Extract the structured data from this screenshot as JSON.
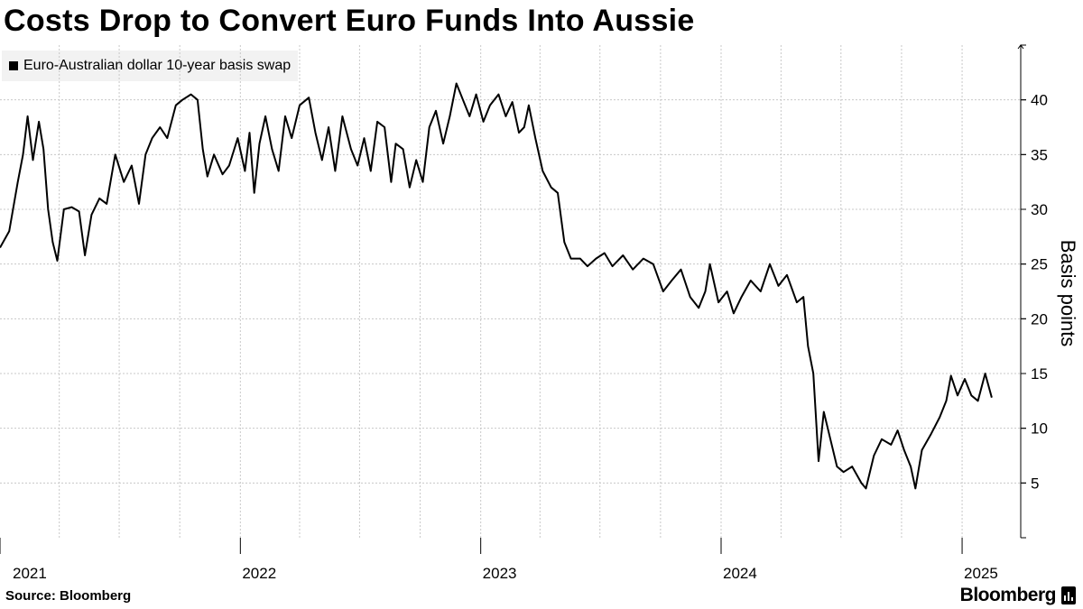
{
  "chart_data": {
    "type": "line",
    "title": "Costs Drop to Convert Euro Funds Into Aussie",
    "ylabel": "Basis points",
    "xlabel": "",
    "ylim": [
      0,
      45
    ],
    "y_ticks": [
      5,
      10,
      15,
      20,
      25,
      30,
      35,
      40
    ],
    "x_ticks": [
      "2021",
      "2022",
      "2023",
      "2024",
      "2025"
    ],
    "x_range": [
      "2021-01-01",
      "2025-03-31"
    ],
    "y_axis_side": "right",
    "grid": true,
    "legend_position": "top-left",
    "series": [
      {
        "name": "Euro-Australian dollar 10-year basis swap",
        "color": "#000000",
        "points": [
          [
            "2021-01-01",
            26.5
          ],
          [
            "2021-01-15",
            28.0
          ],
          [
            "2021-01-28",
            32.5
          ],
          [
            "2021-02-05",
            35.0
          ],
          [
            "2021-02-12",
            38.5
          ],
          [
            "2021-02-20",
            34.5
          ],
          [
            "2021-03-01",
            38.0
          ],
          [
            "2021-03-08",
            35.5
          ],
          [
            "2021-03-15",
            30.0
          ],
          [
            "2021-03-22",
            27.0
          ],
          [
            "2021-03-29",
            25.3
          ],
          [
            "2021-04-08",
            30.0
          ],
          [
            "2021-04-20",
            30.2
          ],
          [
            "2021-05-01",
            29.8
          ],
          [
            "2021-05-10",
            25.8
          ],
          [
            "2021-05-20",
            29.5
          ],
          [
            "2021-06-01",
            31.0
          ],
          [
            "2021-06-12",
            30.5
          ],
          [
            "2021-06-25",
            35.0
          ],
          [
            "2021-07-08",
            32.5
          ],
          [
            "2021-07-20",
            34.0
          ],
          [
            "2021-07-31",
            30.5
          ],
          [
            "2021-08-10",
            35.0
          ],
          [
            "2021-08-20",
            36.5
          ],
          [
            "2021-09-01",
            37.5
          ],
          [
            "2021-09-12",
            36.5
          ],
          [
            "2021-09-25",
            39.5
          ],
          [
            "2021-10-05",
            40.0
          ],
          [
            "2021-10-18",
            40.5
          ],
          [
            "2021-10-28",
            40.0
          ],
          [
            "2021-11-05",
            35.5
          ],
          [
            "2021-11-12",
            33.0
          ],
          [
            "2021-11-22",
            35.0
          ],
          [
            "2021-12-05",
            33.2
          ],
          [
            "2021-12-15",
            34.0
          ],
          [
            "2021-12-28",
            36.5
          ],
          [
            "2022-01-08",
            33.5
          ],
          [
            "2022-01-15",
            37.0
          ],
          [
            "2022-01-22",
            31.5
          ],
          [
            "2022-01-30",
            36.0
          ],
          [
            "2022-02-08",
            38.5
          ],
          [
            "2022-02-18",
            35.5
          ],
          [
            "2022-02-28",
            33.5
          ],
          [
            "2022-03-10",
            38.5
          ],
          [
            "2022-03-20",
            36.5
          ],
          [
            "2022-04-01",
            39.5
          ],
          [
            "2022-04-15",
            40.2
          ],
          [
            "2022-04-25",
            37.0
          ],
          [
            "2022-05-05",
            34.5
          ],
          [
            "2022-05-15",
            37.5
          ],
          [
            "2022-05-25",
            33.5
          ],
          [
            "2022-06-05",
            38.5
          ],
          [
            "2022-06-18",
            35.5
          ],
          [
            "2022-06-28",
            34.0
          ],
          [
            "2022-07-08",
            36.5
          ],
          [
            "2022-07-18",
            33.5
          ],
          [
            "2022-07-28",
            38.0
          ],
          [
            "2022-08-08",
            37.5
          ],
          [
            "2022-08-18",
            32.5
          ],
          [
            "2022-08-25",
            36.0
          ],
          [
            "2022-09-05",
            35.5
          ],
          [
            "2022-09-15",
            32.0
          ],
          [
            "2022-09-25",
            34.5
          ],
          [
            "2022-10-05",
            32.5
          ],
          [
            "2022-10-15",
            37.5
          ],
          [
            "2022-10-25",
            39.0
          ],
          [
            "2022-11-05",
            36.0
          ],
          [
            "2022-11-15",
            38.5
          ],
          [
            "2022-11-25",
            41.5
          ],
          [
            "2022-12-05",
            40.0
          ],
          [
            "2022-12-15",
            38.5
          ],
          [
            "2022-12-25",
            40.5
          ],
          [
            "2023-01-05",
            38.0
          ],
          [
            "2023-01-15",
            39.5
          ],
          [
            "2023-01-28",
            40.5
          ],
          [
            "2023-02-08",
            38.5
          ],
          [
            "2023-02-18",
            39.8
          ],
          [
            "2023-02-28",
            37.0
          ],
          [
            "2023-03-08",
            37.5
          ],
          [
            "2023-03-15",
            39.5
          ],
          [
            "2023-03-25",
            36.5
          ],
          [
            "2023-04-05",
            33.5
          ],
          [
            "2023-04-18",
            32.0
          ],
          [
            "2023-04-28",
            31.5
          ],
          [
            "2023-05-08",
            27.0
          ],
          [
            "2023-05-18",
            25.5
          ],
          [
            "2023-06-01",
            25.5
          ],
          [
            "2023-06-12",
            24.8
          ],
          [
            "2023-06-25",
            25.5
          ],
          [
            "2023-07-08",
            26.0
          ],
          [
            "2023-07-20",
            24.8
          ],
          [
            "2023-08-05",
            25.8
          ],
          [
            "2023-08-20",
            24.5
          ],
          [
            "2023-09-05",
            25.5
          ],
          [
            "2023-09-20",
            25.0
          ],
          [
            "2023-10-05",
            22.5
          ],
          [
            "2023-10-18",
            23.5
          ],
          [
            "2023-11-01",
            24.5
          ],
          [
            "2023-11-15",
            22.0
          ],
          [
            "2023-11-28",
            21.0
          ],
          [
            "2023-12-08",
            22.5
          ],
          [
            "2023-12-15",
            25.0
          ],
          [
            "2023-12-28",
            21.5
          ],
          [
            "2024-01-10",
            22.5
          ],
          [
            "2024-01-20",
            20.5
          ],
          [
            "2024-02-01",
            22.0
          ],
          [
            "2024-02-15",
            23.5
          ],
          [
            "2024-03-01",
            22.5
          ],
          [
            "2024-03-15",
            25.0
          ],
          [
            "2024-03-28",
            23.0
          ],
          [
            "2024-04-10",
            24.0
          ],
          [
            "2024-04-25",
            21.5
          ],
          [
            "2024-05-05",
            22.0
          ],
          [
            "2024-05-12",
            17.5
          ],
          [
            "2024-05-20",
            15.0
          ],
          [
            "2024-05-28",
            7.0
          ],
          [
            "2024-06-05",
            11.5
          ],
          [
            "2024-06-15",
            9.0
          ],
          [
            "2024-06-25",
            6.5
          ],
          [
            "2024-07-05",
            6.0
          ],
          [
            "2024-07-18",
            6.5
          ],
          [
            "2024-08-01",
            5.0
          ],
          [
            "2024-08-08",
            4.5
          ],
          [
            "2024-08-20",
            7.5
          ],
          [
            "2024-09-01",
            9.0
          ],
          [
            "2024-09-15",
            8.5
          ],
          [
            "2024-09-25",
            9.8
          ],
          [
            "2024-10-05",
            8.0
          ],
          [
            "2024-10-15",
            6.5
          ],
          [
            "2024-10-22",
            4.5
          ],
          [
            "2024-11-01",
            8.0
          ],
          [
            "2024-11-15",
            9.5
          ],
          [
            "2024-11-28",
            11.0
          ],
          [
            "2024-12-08",
            12.5
          ],
          [
            "2024-12-15",
            14.8
          ],
          [
            "2024-12-25",
            13.0
          ],
          [
            "2025-01-05",
            14.5
          ],
          [
            "2025-01-15",
            13.0
          ],
          [
            "2025-01-25",
            12.5
          ],
          [
            "2025-02-05",
            15.0
          ],
          [
            "2025-02-15",
            12.8
          ]
        ]
      }
    ]
  },
  "footer": {
    "source": "Source: Bloomberg",
    "brand": "Bloomberg"
  }
}
